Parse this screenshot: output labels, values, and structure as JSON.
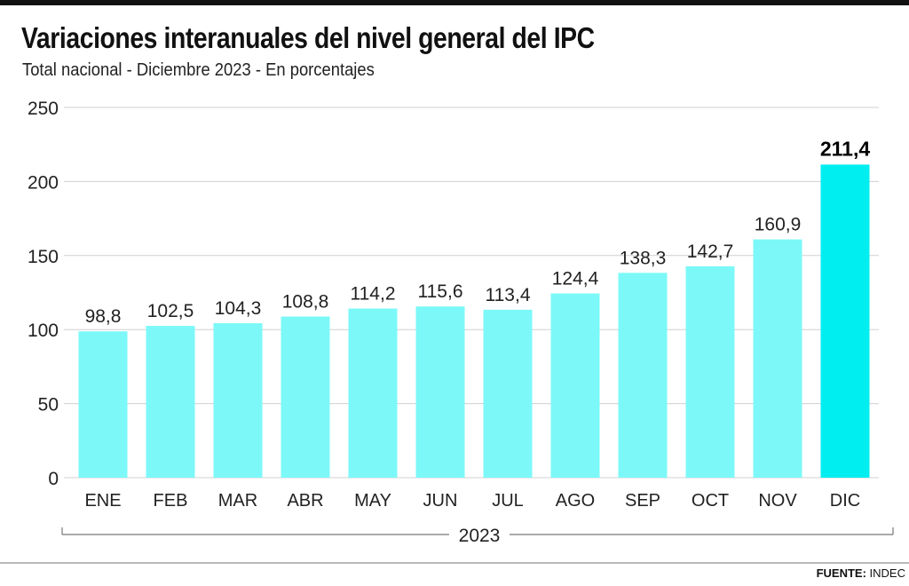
{
  "header": {
    "title": "Variaciones interanuales del nivel general del IPC",
    "subtitle": "Total nacional - Diciembre 2023 - En porcentajes"
  },
  "footer": {
    "source_label": "FUENTE:",
    "source_value": "INDEC"
  },
  "colors": {
    "bar": "#7cf8f8",
    "bar_highlight": "#00eef0",
    "grid": "#d0d0d0",
    "text": "#222222"
  },
  "chart_data": {
    "type": "bar",
    "title": "Variaciones interanuales del nivel general del IPC",
    "subtitle": "Total nacional - Diciembre 2023 - En porcentajes",
    "categories": [
      "ENE",
      "FEB",
      "MAR",
      "ABR",
      "MAY",
      "JUN",
      "JUL",
      "AGO",
      "SEP",
      "OCT",
      "NOV",
      "DIC"
    ],
    "values": [
      98.8,
      102.5,
      104.3,
      108.8,
      114.2,
      115.6,
      113.4,
      124.4,
      138.3,
      142.7,
      160.9,
      211.4
    ],
    "value_labels": [
      "98,8",
      "102,5",
      "104,3",
      "108,8",
      "114,2",
      "115,6",
      "113,4",
      "124,4",
      "138,3",
      "142,7",
      "160,9",
      "211,4"
    ],
    "highlight_index": 11,
    "group_label": "2023",
    "xlabel": "",
    "ylabel": "",
    "ylim": [
      0,
      250
    ],
    "yticks": [
      0,
      50,
      100,
      150,
      200,
      250
    ],
    "grid": true,
    "legend": "none"
  }
}
